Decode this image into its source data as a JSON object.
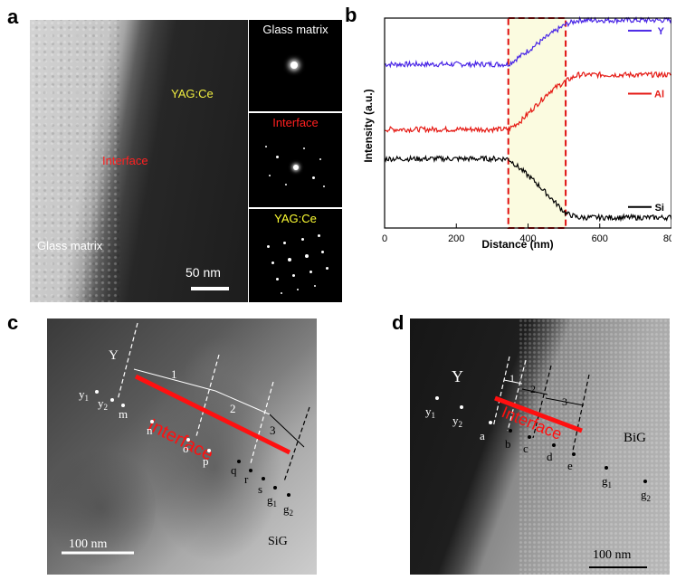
{
  "panels": {
    "a": {
      "label": "a",
      "glass_matrix": "Glass matrix",
      "yagce": "YAG:Ce",
      "interface": "Interface",
      "scale_bar": "50 nm",
      "saed": [
        {
          "title": "Glass matrix",
          "title_color": "#ffffff"
        },
        {
          "title": "Interface",
          "title_color": "#ff2020"
        },
        {
          "title": "YAG:Ce",
          "title_color": "#ffff33"
        }
      ]
    },
    "b": {
      "label": "b"
    },
    "c": {
      "label": "c",
      "y_label": "Y",
      "sig_label": "SiG",
      "interface": "Interface",
      "scale_bar": "100 nm",
      "zones": [
        "1",
        "2",
        "3"
      ],
      "points": [
        "y",
        "y",
        "m",
        "n",
        "o",
        "p",
        "q",
        "r",
        "s",
        "g",
        "g"
      ],
      "subscripts": [
        "1",
        "2",
        "1",
        "2"
      ]
    },
    "d": {
      "label": "d",
      "y_label": "Y",
      "big_label": "BiG",
      "interface": "Interface",
      "scale_bar": "100 nm",
      "zones": [
        "1",
        "2",
        "3"
      ],
      "points": [
        "y",
        "y",
        "a",
        "b",
        "c",
        "d",
        "e",
        "g",
        "g"
      ],
      "subscripts": [
        "1",
        "2",
        "1",
        "2"
      ]
    }
  },
  "chart_data": {
    "type": "line",
    "xlabel": "Distance (nm)",
    "ylabel": "Intensity (a.u.)",
    "xlim": [
      0,
      800
    ],
    "xticks": [
      "0",
      "200",
      "400",
      "600",
      "800"
    ],
    "highlight_region": [
      345,
      505
    ],
    "highlight_fill": "#fbfbe0",
    "highlight_border": "#e01010",
    "series": [
      {
        "name": "Y",
        "color": "#4b28e6",
        "x": [
          0,
          100,
          200,
          300,
          345,
          380,
          420,
          460,
          505,
          540,
          600,
          700,
          800
        ],
        "y": [
          0.78,
          0.78,
          0.78,
          0.78,
          0.78,
          0.82,
          0.87,
          0.92,
          0.97,
          0.99,
          0.99,
          0.99,
          0.99
        ]
      },
      {
        "name": "Al",
        "color": "#e51a14",
        "x": [
          0,
          100,
          200,
          300,
          345,
          380,
          420,
          460,
          505,
          540,
          600,
          700,
          800
        ],
        "y": [
          0.47,
          0.47,
          0.47,
          0.47,
          0.47,
          0.51,
          0.58,
          0.65,
          0.7,
          0.73,
          0.73,
          0.73,
          0.73
        ]
      },
      {
        "name": "Si",
        "color": "#000000",
        "x": [
          0,
          100,
          200,
          300,
          345,
          380,
          420,
          460,
          505,
          540,
          600,
          700,
          800
        ],
        "y": [
          0.33,
          0.33,
          0.33,
          0.33,
          0.33,
          0.28,
          0.22,
          0.15,
          0.07,
          0.05,
          0.05,
          0.05,
          0.05
        ]
      }
    ]
  }
}
